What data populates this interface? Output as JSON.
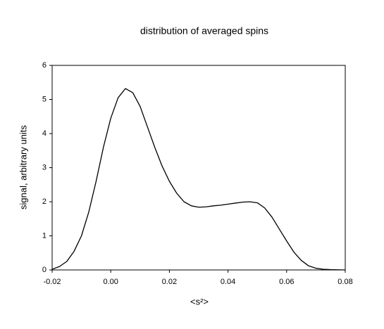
{
  "chart_data": {
    "type": "line",
    "title": "distribution of averaged spins",
    "x_label": "<s²>",
    "y_label": "signal, arbitrary units",
    "x": [
      -0.02,
      -0.0175,
      -0.015,
      -0.0125,
      -0.01,
      -0.0075,
      -0.005,
      -0.0025,
      0,
      0.0025,
      0.005,
      0.0075,
      0.01,
      0.0125,
      0.015,
      0.0175,
      0.02,
      0.0225,
      0.025,
      0.0275,
      0.03,
      0.0325,
      0.035,
      0.0375,
      0.04,
      0.0425,
      0.045,
      0.0475,
      0.05,
      0.0525,
      0.055,
      0.0575,
      0.06,
      0.0625,
      0.065,
      0.0675,
      0.07,
      0.0725,
      0.075,
      0.08
    ],
    "series": [
      {
        "color": "#000000",
        "values": [
          0.02,
          0.1,
          0.25,
          0.55,
          1.0,
          1.7,
          2.6,
          3.6,
          4.45,
          5.05,
          5.32,
          5.2,
          4.8,
          4.2,
          3.6,
          3.05,
          2.6,
          2.25,
          2.0,
          1.88,
          1.84,
          1.85,
          1.88,
          1.9,
          1.93,
          1.96,
          1.99,
          2.0,
          1.97,
          1.82,
          1.55,
          1.2,
          0.85,
          0.52,
          0.28,
          0.12,
          0.05,
          0.02,
          0.01,
          0
        ]
      }
    ],
    "xlim": [
      -0.02,
      0.08
    ],
    "xticks": [
      -0.02,
      {
        "value": 0,
        "label": "0.00"
      },
      0.02,
      0.04,
      0.06,
      0.08
    ],
    "ylim": [
      0,
      6
    ],
    "yticks": [
      0,
      1,
      2,
      3,
      4,
      5,
      6
    ],
    "grid": false
  }
}
